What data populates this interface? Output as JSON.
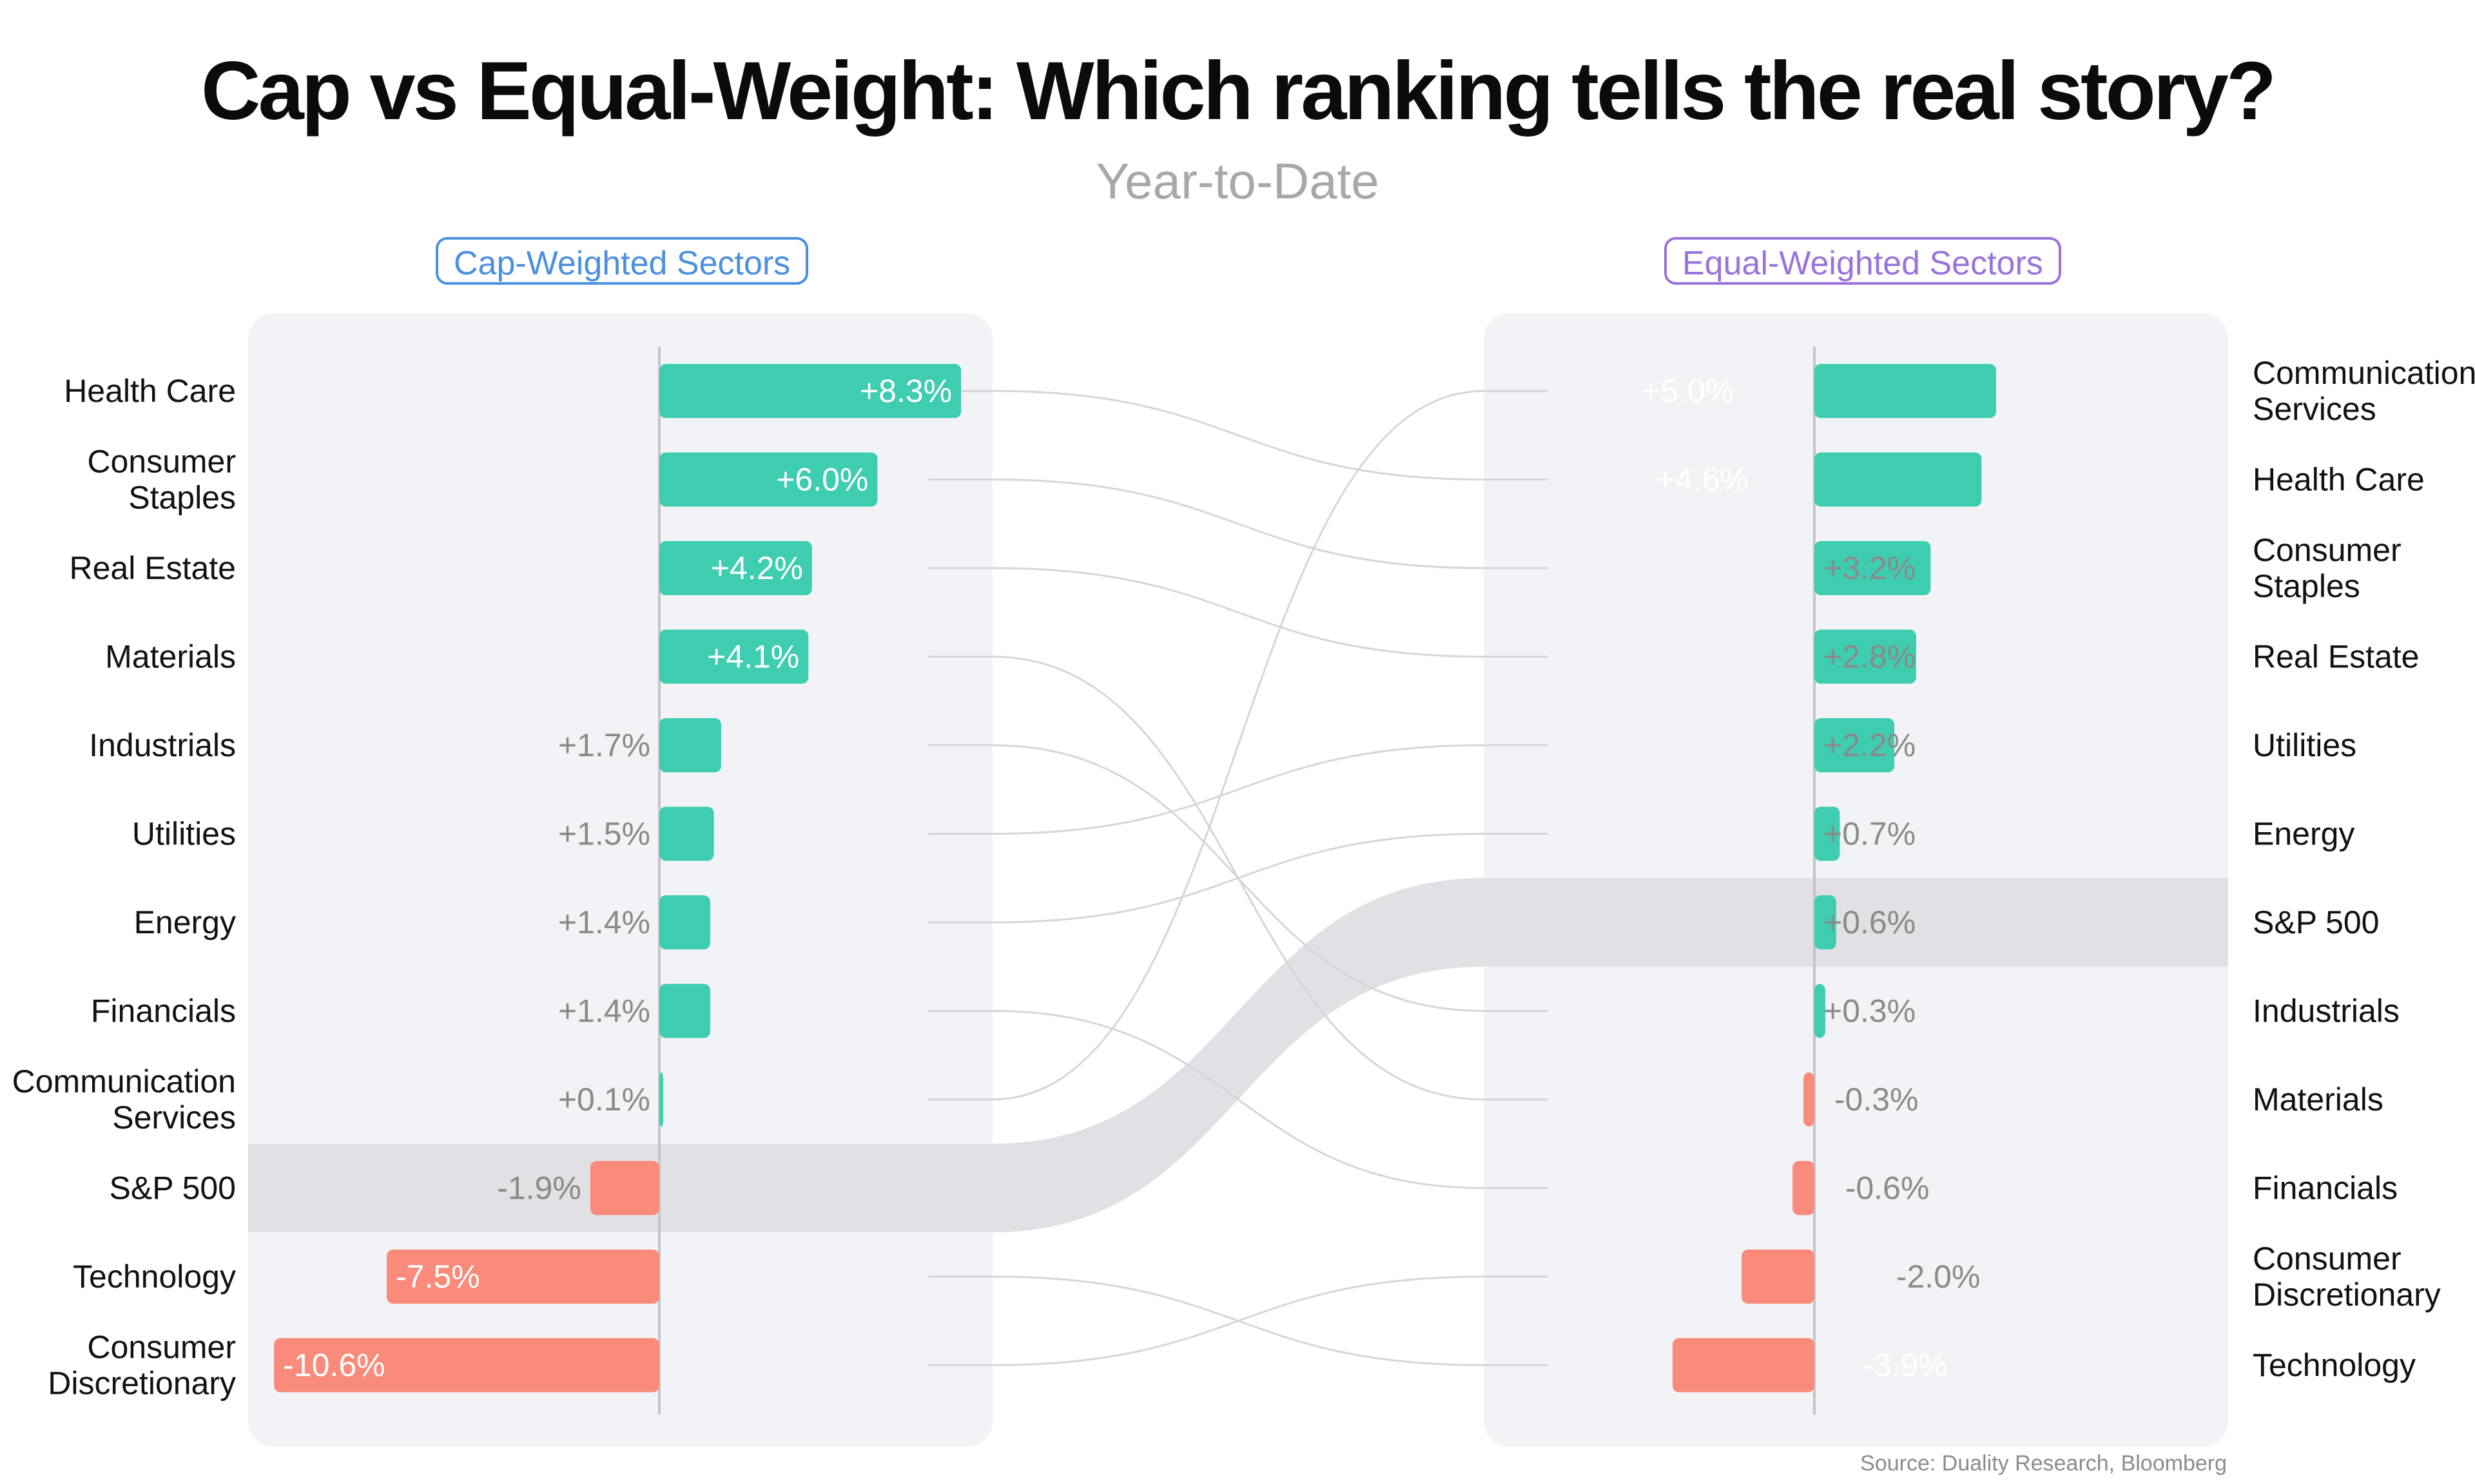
{
  "title": "Cap vs Equal-Weight: Which ranking tells the real story?",
  "subtitle": "Year-to-Date",
  "left_panel_label": "Cap-Weighted Sectors",
  "right_panel_label": "Equal-Weighted Sectors",
  "source": "Source: Duality Research, Bloomberg",
  "colors": {
    "positive": "#3ecdb1",
    "negative": "#fa8a7a",
    "panel": "#f2f3f7",
    "highlight": "#e0e0e5",
    "connector": "#d6d6da",
    "label_text": "#111111",
    "value_outside": "#8a8a8a",
    "value_inside": "#ffffff"
  },
  "chart_data": [
    {
      "type": "bar",
      "orientation": "horizontal",
      "panel": "Cap-Weighted Sectors",
      "categories": [
        "Health Care",
        "Consumer\nStaples",
        "Real Estate",
        "Materials",
        "Industrials",
        "Utilities",
        "Energy",
        "Financials",
        "Communication\nServices",
        "S&P 500",
        "Technology",
        "Consumer\nDiscretionary"
      ],
      "values": [
        8.3,
        6.0,
        4.2,
        4.1,
        1.7,
        1.5,
        1.4,
        1.4,
        0.1,
        -1.9,
        -7.5,
        -10.6
      ],
      "labels": [
        "+8.3%",
        "+6.0%",
        "+4.2%",
        "+4.1%",
        "+1.7%",
        "+1.5%",
        "+1.4%",
        "+1.4%",
        "+0.1%",
        "-1.9%",
        "-7.5%",
        "-10.6%"
      ],
      "highlight": "S&P 500",
      "unit": "%"
    },
    {
      "type": "bar",
      "orientation": "horizontal",
      "panel": "Equal-Weighted Sectors",
      "categories": [
        "Communication\nServices",
        "Health Care",
        "Consumer\nStaples",
        "Real Estate",
        "Utilities",
        "Energy",
        "S&P 500",
        "Industrials",
        "Materials",
        "Financials",
        "Consumer\nDiscretionary",
        "Technology"
      ],
      "values": [
        5.0,
        4.6,
        3.2,
        2.8,
        2.2,
        0.7,
        0.6,
        0.3,
        -0.3,
        -0.6,
        -2.0,
        -3.9
      ],
      "labels": [
        "+5.0%",
        "+4.6%",
        "+3.2%",
        "+2.8%",
        "+2.2%",
        "+0.7%",
        "+0.6%",
        "+0.3%",
        "-0.3%",
        "-0.6%",
        "-2.0%",
        "-3.9%"
      ],
      "highlight": "S&P 500",
      "unit": "%"
    }
  ]
}
